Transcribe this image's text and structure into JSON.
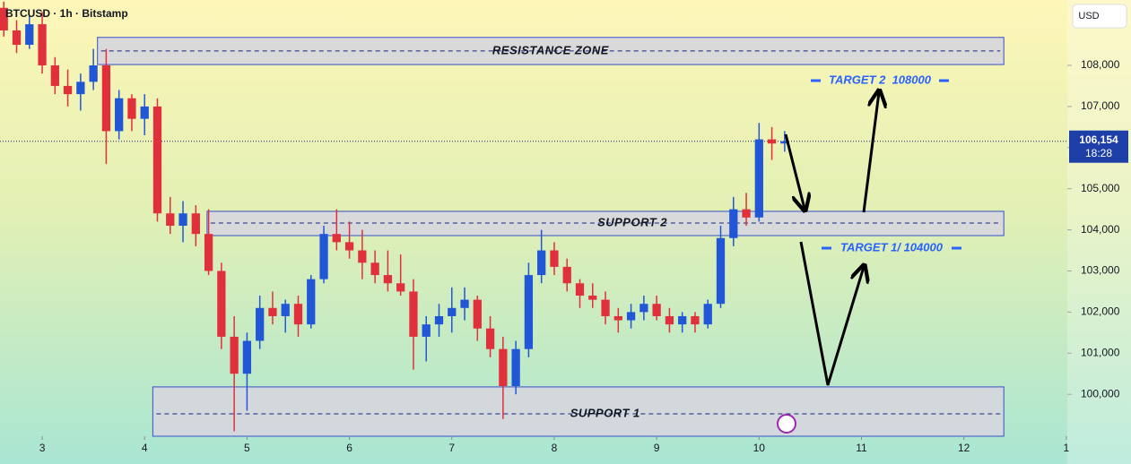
{
  "chart_data": {
    "type": "candlestick",
    "title": "BTCUSD · 1h · Bitstamp",
    "currency": "USD",
    "up_color": "#2157d6",
    "down_color": "#e0303c",
    "xlim": [
      2.588,
      13.01
    ],
    "ylim": [
      98980,
      109590
    ],
    "xticks": [
      3,
      4,
      5,
      6,
      7,
      8,
      9,
      10,
      11,
      12,
      {
        "value": 13,
        "label": "1"
      }
    ],
    "yticks": [
      {
        "value": 100000,
        "label": "100,000"
      },
      {
        "value": 101000,
        "label": "101,000"
      },
      {
        "value": 102000,
        "label": "102,000"
      },
      {
        "value": 103000,
        "label": "103,000"
      },
      {
        "value": 104000,
        "label": "104,000"
      },
      {
        "value": 105000,
        "label": "105,000"
      },
      {
        "value": 106000,
        "label": "106,000"
      },
      {
        "value": 107000,
        "label": "107,000"
      },
      {
        "value": 108000,
        "label": "108,000"
      }
    ],
    "last_price": {
      "value": 106154,
      "label": "106,154"
    },
    "countdown": "18:28",
    "x": [
      2.625,
      2.75,
      2.875,
      3.0,
      3.125,
      3.25,
      3.375,
      3.5,
      3.625,
      3.75,
      3.875,
      4.0,
      4.125,
      4.25,
      4.375,
      4.5,
      4.625,
      4.75,
      4.875,
      5.0,
      5.125,
      5.25,
      5.375,
      5.5,
      5.625,
      5.75,
      5.875,
      6.0,
      6.125,
      6.25,
      6.375,
      6.5,
      6.625,
      6.75,
      6.875,
      7.0,
      7.125,
      7.25,
      7.375,
      7.5,
      7.625,
      7.75,
      7.875,
      8.0,
      8.125,
      8.25,
      8.375,
      8.5,
      8.625,
      8.75,
      8.875,
      9.0,
      9.125,
      9.25,
      9.375,
      9.5,
      9.625,
      9.75,
      9.875,
      10.0,
      10.125,
      10.25
    ],
    "open": [
      109400,
      108850,
      108500,
      109000,
      108000,
      107500,
      107300,
      107600,
      108000,
      106400,
      107200,
      106700,
      107000,
      104400,
      104100,
      104400,
      103900,
      103000,
      101400,
      100500,
      101300,
      102100,
      101900,
      102200,
      101700,
      102800,
      103900,
      103700,
      103500,
      103200,
      102900,
      102700,
      102500,
      101400,
      101700,
      101900,
      102100,
      102300,
      101600,
      101100,
      100200,
      101100,
      102900,
      103500,
      103100,
      102700,
      102400,
      102300,
      101900,
      101800,
      102000,
      102200,
      101900,
      101700,
      101900,
      101700,
      102200,
      103800,
      104500,
      104300,
      106200,
      106100
    ],
    "high": [
      109550,
      109100,
      109200,
      109300,
      108200,
      107900,
      107800,
      108400,
      108400,
      107400,
      107300,
      107300,
      107200,
      104800,
      104700,
      104600,
      104500,
      103200,
      101900,
      101500,
      102400,
      102500,
      102300,
      102400,
      102900,
      104100,
      104500,
      104200,
      104000,
      103500,
      103500,
      103400,
      102800,
      101900,
      102200,
      102600,
      102600,
      102400,
      101900,
      101400,
      101300,
      103200,
      104000,
      103700,
      103300,
      102800,
      102700,
      102500,
      102100,
      102200,
      102400,
      102400,
      102100,
      102000,
      102000,
      102300,
      104100,
      104800,
      104900,
      106600,
      106500,
      106400
    ],
    "low": [
      108700,
      108300,
      108400,
      107800,
      107300,
      107000,
      106900,
      107400,
      105600,
      106200,
      106400,
      106300,
      104200,
      103900,
      103700,
      103600,
      102900,
      101100,
      99100,
      99600,
      101100,
      101700,
      101500,
      101400,
      101600,
      102700,
      103500,
      103300,
      102800,
      102700,
      102500,
      102400,
      100600,
      100800,
      101400,
      101500,
      101800,
      101300,
      100900,
      99400,
      100000,
      100900,
      102700,
      102900,
      102500,
      102100,
      102100,
      101700,
      101500,
      101600,
      101800,
      101800,
      101500,
      101500,
      101500,
      101600,
      102100,
      103600,
      104100,
      104200,
      105700,
      105900
    ],
    "close": [
      108850,
      108500,
      109000,
      108000,
      107500,
      107300,
      107600,
      108000,
      106400,
      107200,
      106700,
      107000,
      104400,
      104100,
      104400,
      103900,
      103000,
      101400,
      100500,
      101300,
      102100,
      101900,
      102200,
      101700,
      102800,
      103900,
      103700,
      103500,
      103200,
      102900,
      102700,
      102500,
      101400,
      101700,
      101900,
      102100,
      102300,
      101600,
      101100,
      100200,
      101100,
      102900,
      103500,
      103100,
      102700,
      102400,
      102300,
      101900,
      101800,
      102000,
      102200,
      101900,
      101700,
      101900,
      101700,
      102200,
      103800,
      104500,
      104300,
      106200,
      106100,
      106154
    ],
    "zones": [
      {
        "name": "RESISTANCE ZONE",
        "from": 108020,
        "to": 108680,
        "line": 108350,
        "x_start": 3.54,
        "x_end": 12.39
      },
      {
        "name": "SUPPORT 2",
        "from": 103860,
        "to": 104450,
        "line": 104165,
        "x_start": 4.61,
        "x_end": 12.39
      },
      {
        "name": "SUPPORT 1",
        "from": 98980,
        "to": 100180,
        "line": 99525,
        "x_start": 4.08,
        "x_end": 12.39
      }
    ],
    "annotations": [
      "TARGET 2  108000",
      "TARGET 1/ 104000"
    ]
  }
}
